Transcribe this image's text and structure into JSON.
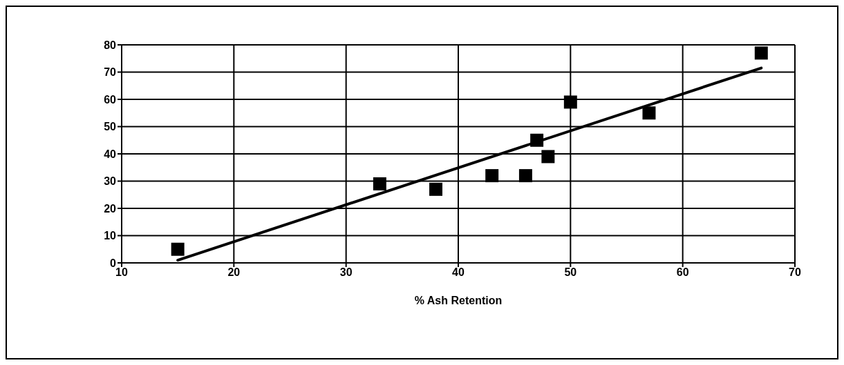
{
  "chart_data": {
    "type": "scatter",
    "xlabel": "% Ash Retention",
    "xlim": [
      10,
      70
    ],
    "xticks": [
      10,
      20,
      30,
      40,
      50,
      60,
      70
    ],
    "ylim": [
      0,
      80
    ],
    "yticks": [
      0,
      10,
      20,
      30,
      40,
      50,
      60,
      70,
      80
    ],
    "grid": true,
    "series": [
      {
        "marker": "square",
        "color": "#000000",
        "x": [
          15,
          33,
          38,
          43,
          46,
          47,
          48,
          50,
          57,
          67
        ],
        "values": [
          5,
          29,
          27,
          32,
          32,
          45,
          39,
          59,
          55,
          77
        ]
      },
      {
        "type": "line",
        "marker": "none",
        "color": "#000000",
        "x": [
          15,
          67
        ],
        "values": [
          1,
          71.5
        ]
      }
    ]
  }
}
